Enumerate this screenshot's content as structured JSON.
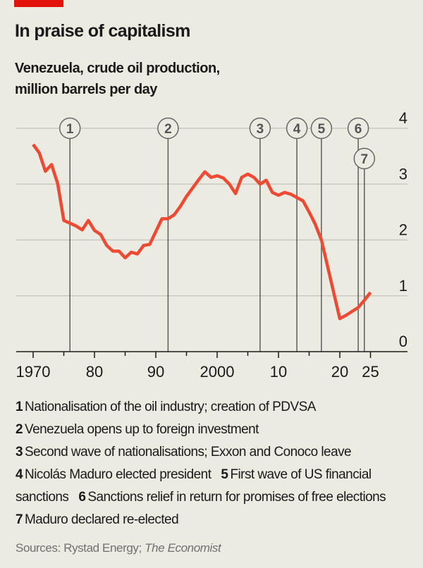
{
  "title": "In praise of capitalism",
  "subtitle_line1": "Venezuela, crude oil production,",
  "subtitle_line2": "million barrels per day",
  "colors": {
    "background": "#ecebe2",
    "accent_bar": "#e3120b",
    "line": "#ee4a33",
    "event_line": "#5c5c5c",
    "grid": "#c9c8bf"
  },
  "chart_data": {
    "type": "line",
    "title": "Venezuela, crude oil production, million barrels per day",
    "xlim": [
      1970,
      2025
    ],
    "ylim": [
      0,
      4
    ],
    "x_ticks": [
      {
        "value": 1970,
        "label": "1970"
      },
      {
        "value": 1980,
        "label": "80"
      },
      {
        "value": 1990,
        "label": "90"
      },
      {
        "value": 2000,
        "label": "2000"
      },
      {
        "value": 2010,
        "label": "10"
      },
      {
        "value": 2020,
        "label": "20"
      },
      {
        "value": 2025,
        "label": "25"
      }
    ],
    "y_ticks": [
      {
        "value": 0,
        "label": "0"
      },
      {
        "value": 1,
        "label": "1"
      },
      {
        "value": 2,
        "label": "2"
      },
      {
        "value": 3,
        "label": "3"
      },
      {
        "value": 4,
        "label": "4"
      }
    ],
    "grid": true,
    "x": [
      1970,
      1971,
      1972,
      1973,
      1974,
      1975,
      1976,
      1977,
      1978,
      1979,
      1980,
      1981,
      1982,
      1983,
      1984,
      1985,
      1986,
      1987,
      1988,
      1989,
      1990,
      1991,
      1992,
      1993,
      1994,
      1995,
      1996,
      1997,
      1998,
      1999,
      2000,
      2001,
      2002,
      2003,
      2004,
      2005,
      2006,
      2007,
      2008,
      2009,
      2010,
      2011,
      2012,
      2013,
      2014,
      2015,
      2016,
      2017,
      2018,
      2019,
      2020,
      2021,
      2022,
      2023,
      2024,
      2025
    ],
    "y": [
      3.71,
      3.56,
      3.23,
      3.35,
      3.01,
      2.35,
      2.3,
      2.25,
      2.18,
      2.35,
      2.17,
      2.1,
      1.9,
      1.8,
      1.8,
      1.68,
      1.78,
      1.75,
      1.9,
      1.92,
      2.15,
      2.38,
      2.38,
      2.45,
      2.6,
      2.78,
      2.93,
      3.08,
      3.22,
      3.12,
      3.15,
      3.11,
      3.0,
      2.83,
      3.12,
      3.18,
      3.12,
      3.0,
      3.07,
      2.85,
      2.8,
      2.85,
      2.82,
      2.76,
      2.7,
      2.5,
      2.28,
      2.0,
      1.53,
      1.06,
      0.59,
      0.65,
      0.72,
      0.79,
      0.92,
      1.06
    ],
    "events": [
      {
        "num": "1",
        "year": 1976,
        "text": "Nationalisation of the oil industry; creation of PDVSA"
      },
      {
        "num": "2",
        "year": 1992,
        "text": "Venezuela opens up to foreign investment"
      },
      {
        "num": "3",
        "year": 2007,
        "text": "Second wave of nationalisations; Exxon and Conoco leave"
      },
      {
        "num": "4",
        "year": 2013,
        "text": "Nicolás Maduro elected president"
      },
      {
        "num": "5",
        "year": 2017,
        "text": "First wave of US financial sanctions"
      },
      {
        "num": "6",
        "year": 2023,
        "text": "Sanctions relief in return for promises of free elections"
      },
      {
        "num": "7",
        "year": 2024,
        "text": "Maduro declared re-elected"
      }
    ]
  },
  "source_prefix": "Sources: Rystad Energy; ",
  "source_italic": "The Economist"
}
